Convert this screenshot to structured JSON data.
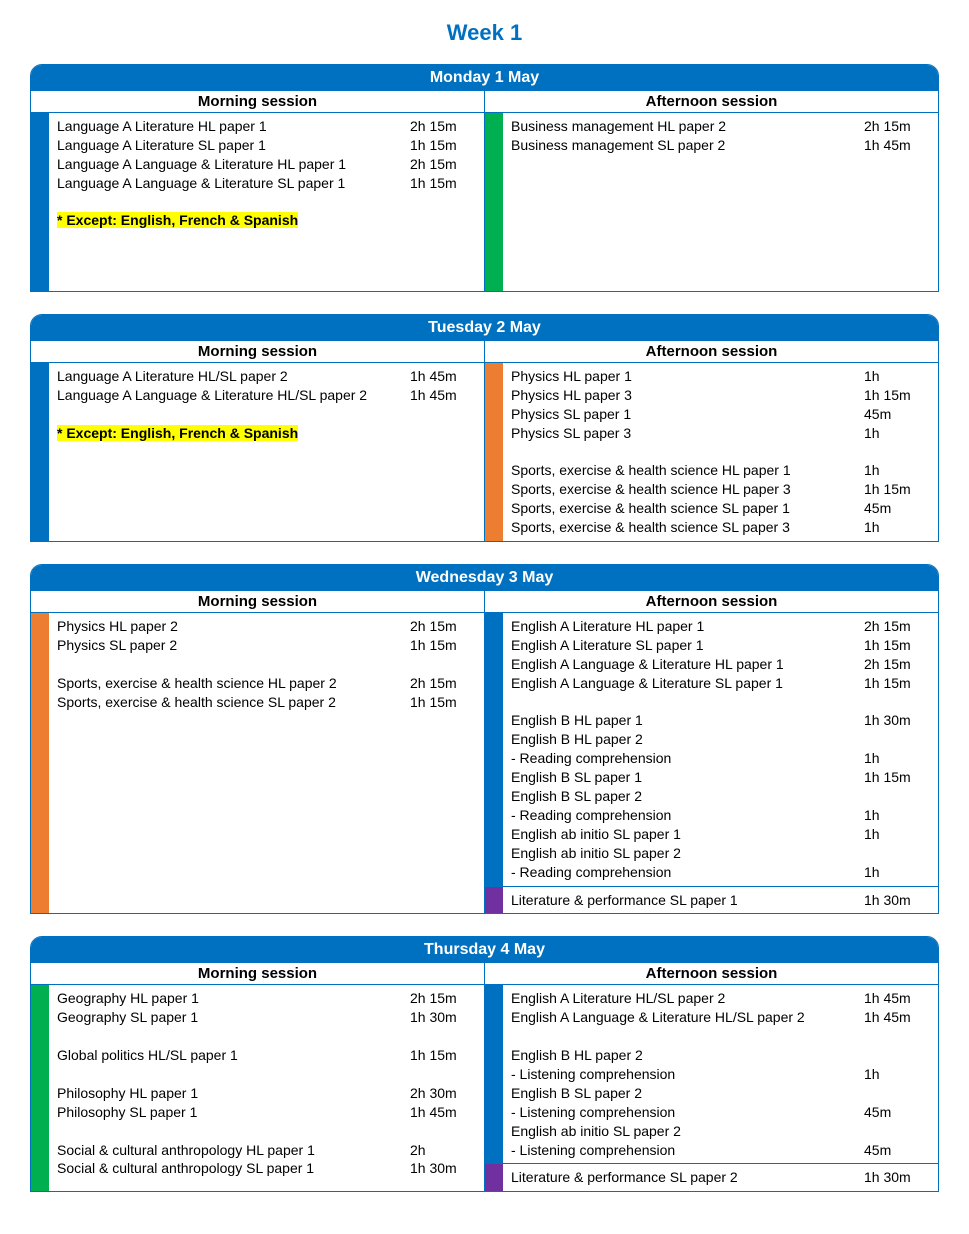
{
  "title": "Week 1",
  "labels": {
    "morning": "Morning session",
    "afternoon": "Afternoon session"
  },
  "colors": {
    "header_bg": "#0070c0",
    "header_fg": "#ffffff",
    "blue_bar": "#0070c0",
    "green_bar": "#00b050",
    "orange_bar": "#ed7d31",
    "purple_bar": "#7030a0",
    "highlight": "#ffff00"
  },
  "days": [
    {
      "title": "Monday 1 May",
      "morning": [
        {
          "bar": "#0070c0",
          "rows": [
            {
              "name": "Language A Literature HL paper 1",
              "dur": "2h 15m"
            },
            {
              "name": "Language A Literature SL paper 1",
              "dur": "1h 15m"
            },
            {
              "name": "Language A Language & Literature HL paper 1",
              "dur": "2h 15m"
            },
            {
              "name": "Language A Language & Literature SL paper 1",
              "dur": "1h 15m"
            },
            {
              "name": "",
              "dur": ""
            },
            {
              "name": "* Except: English, French & Spanish",
              "dur": "",
              "note": true,
              "highlight": true
            },
            {
              "name": "",
              "dur": ""
            },
            {
              "name": "",
              "dur": ""
            },
            {
              "name": "",
              "dur": ""
            }
          ]
        }
      ],
      "afternoon": [
        {
          "bar": "#00b050",
          "rows": [
            {
              "name": "Business management HL paper 2",
              "dur": "2h 15m"
            },
            {
              "name": "Business management SL paper 2",
              "dur": "1h 45m"
            }
          ]
        }
      ]
    },
    {
      "title": "Tuesday 2 May",
      "morning": [
        {
          "bar": "#0070c0",
          "rows": [
            {
              "name": "Language A Literature HL/SL paper 2",
              "dur": "1h 45m"
            },
            {
              "name": "Language A Language & Literature HL/SL paper 2",
              "dur": "1h 45m"
            },
            {
              "name": "",
              "dur": ""
            },
            {
              "name": "* Except: English, French & Spanish",
              "dur": "",
              "note": true,
              "highlight": true
            }
          ]
        }
      ],
      "afternoon": [
        {
          "bar": "#ed7d31",
          "rows": [
            {
              "name": "Physics HL paper 1",
              "dur": "1h"
            },
            {
              "name": "Physics HL paper 3",
              "dur": "1h 15m"
            },
            {
              "name": "Physics SL paper 1",
              "dur": "45m"
            },
            {
              "name": "Physics SL paper 3",
              "dur": "1h"
            },
            {
              "name": "",
              "dur": ""
            },
            {
              "name": "Sports, exercise & health science HL paper 1",
              "dur": "1h"
            },
            {
              "name": "Sports, exercise & health science HL paper 3",
              "dur": "1h 15m"
            },
            {
              "name": "Sports, exercise & health science SL paper 1",
              "dur": "45m"
            },
            {
              "name": "Sports, exercise & health science SL paper 3",
              "dur": "1h"
            }
          ]
        }
      ]
    },
    {
      "title": "Wednesday 3 May",
      "morning": [
        {
          "bar": "#ed7d31",
          "rows": [
            {
              "name": "Physics HL paper 2",
              "dur": "2h 15m"
            },
            {
              "name": "Physics SL paper 2",
              "dur": "1h 15m"
            },
            {
              "name": "",
              "dur": ""
            },
            {
              "name": "Sports, exercise & health science HL paper 2",
              "dur": "2h 15m"
            },
            {
              "name": "Sports, exercise & health science SL paper 2",
              "dur": "1h 15m"
            }
          ]
        }
      ],
      "afternoon": [
        {
          "bar": "#0070c0",
          "rows": [
            {
              "name": "English A Literature HL paper 1",
              "dur": "2h 15m"
            },
            {
              "name": "English A Literature SL paper 1",
              "dur": "1h 15m"
            },
            {
              "name": "English A Language & Literature HL paper 1",
              "dur": "2h 15m"
            },
            {
              "name": "English A Language & Literature SL paper 1",
              "dur": "1h 15m"
            },
            {
              "name": "",
              "dur": ""
            },
            {
              "name": "English B HL paper 1",
              "dur": "1h 30m"
            },
            {
              "name": "English B HL paper 2",
              "dur": ""
            },
            {
              "name": "- Reading comprehension",
              "dur": "1h"
            },
            {
              "name": "English B SL paper 1",
              "dur": "1h 15m"
            },
            {
              "name": "English B SL paper 2",
              "dur": ""
            },
            {
              "name": "- Reading comprehension",
              "dur": "1h"
            },
            {
              "name": "English ab initio SL paper 1",
              "dur": "1h"
            },
            {
              "name": "English ab initio SL paper 2",
              "dur": ""
            },
            {
              "name": "- Reading comprehension",
              "dur": "1h"
            }
          ]
        },
        {
          "bar": "#7030a0",
          "rows": [
            {
              "name": "Literature & performance SL paper 1",
              "dur": "1h 30m"
            }
          ]
        }
      ]
    },
    {
      "title": "Thursday 4 May",
      "morning": [
        {
          "bar": "#00b050",
          "rows": [
            {
              "name": "Geography HL paper 1",
              "dur": "2h 15m"
            },
            {
              "name": "Geography SL paper 1",
              "dur": "1h 30m"
            },
            {
              "name": "",
              "dur": ""
            },
            {
              "name": "Global politics HL/SL paper 1",
              "dur": "1h 15m"
            },
            {
              "name": "",
              "dur": ""
            },
            {
              "name": "Philosophy HL paper 1",
              "dur": "2h 30m"
            },
            {
              "name": "Philosophy SL paper 1",
              "dur": "1h 45m"
            },
            {
              "name": "",
              "dur": ""
            },
            {
              "name": "Social & cultural anthropology HL paper 1",
              "dur": "2h"
            },
            {
              "name": "Social & cultural anthropology SL paper 1",
              "dur": "1h 30m"
            }
          ]
        }
      ],
      "afternoon": [
        {
          "bar": "#0070c0",
          "rows": [
            {
              "name": "English A Literature HL/SL paper 2",
              "dur": "1h 45m"
            },
            {
              "name": "English A Language & Literature HL/SL paper 2",
              "dur": "1h 45m"
            },
            {
              "name": "",
              "dur": ""
            },
            {
              "name": "English B HL paper 2",
              "dur": ""
            },
            {
              "name": "- Listening comprehension",
              "dur": "1h"
            },
            {
              "name": "English B SL paper 2",
              "dur": ""
            },
            {
              "name": "- Listening comprehension",
              "dur": "45m"
            },
            {
              "name": "English ab initio SL paper 2",
              "dur": ""
            },
            {
              "name": "- Listening comprehension",
              "dur": "45m"
            }
          ]
        },
        {
          "bar": "#7030a0",
          "rows": [
            {
              "name": "Literature & performance SL paper 2",
              "dur": "1h 30m"
            }
          ]
        }
      ]
    }
  ]
}
